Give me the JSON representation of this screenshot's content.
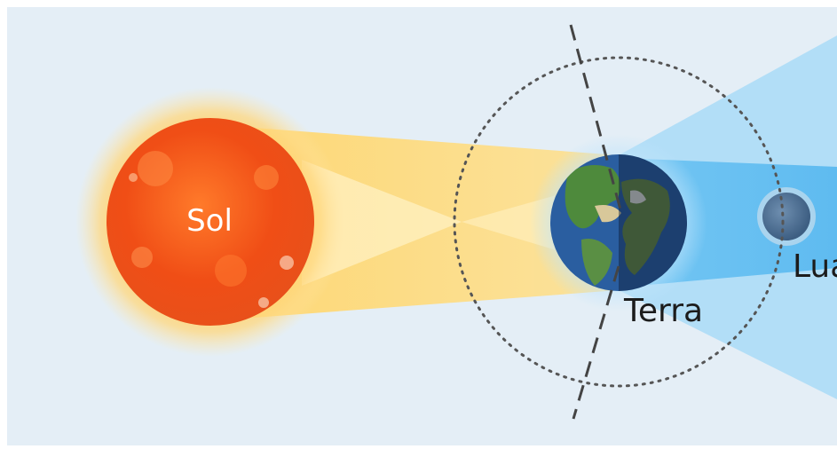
{
  "diagram": {
    "labels": {
      "sun": "Sol",
      "earth": "Terra",
      "moon": "Lua"
    },
    "colors": {
      "background": "#e4eef6",
      "sun_core": "#f25a17",
      "sun_glow": "#ffb24a",
      "sunlight_beam": "#ffd97a",
      "earth_shadow": "#4fb3ee",
      "earth_ocean": "#2a5ea0",
      "earth_land": "#4e8a3c",
      "moon": "#4d6f93",
      "orbit_line": "#555555"
    }
  }
}
